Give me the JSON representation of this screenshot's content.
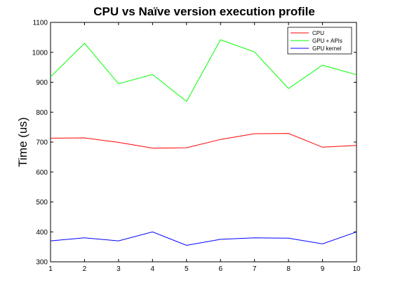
{
  "chart_data": {
    "type": "line",
    "title": "CPU vs Naïve version execution profile",
    "xlabel": "",
    "ylabel": "Time (us)",
    "x": [
      1,
      2,
      3,
      4,
      5,
      6,
      7,
      8,
      9,
      10
    ],
    "xlim": [
      1,
      10
    ],
    "ylim": [
      300,
      1100
    ],
    "xticks": [
      1,
      2,
      3,
      4,
      5,
      6,
      7,
      8,
      9,
      10
    ],
    "yticks": [
      300,
      400,
      500,
      600,
      700,
      800,
      900,
      1000,
      1100
    ],
    "grid": false,
    "legend_position": "top-right",
    "series": [
      {
        "name": "CPU",
        "color": "#ff0000",
        "values": [
          713,
          714,
          699,
          680,
          681,
          709,
          728,
          729,
          683,
          689
        ]
      },
      {
        "name": "GPU + APIs",
        "color": "#00ff00",
        "values": [
          918,
          1030,
          895,
          926,
          836,
          1042,
          1001,
          879,
          957,
          925
        ]
      },
      {
        "name": "GPU kernel",
        "color": "#0000ff",
        "values": [
          370,
          380,
          370,
          400,
          355,
          375,
          380,
          379,
          360,
          400
        ]
      }
    ]
  }
}
